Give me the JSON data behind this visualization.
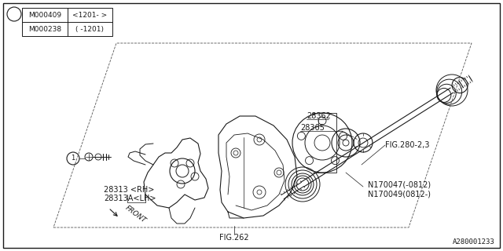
{
  "background_color": "#ffffff",
  "fig_width": 6.4,
  "fig_height": 3.2,
  "dpi": 100,
  "watermark": "A280001233",
  "line_color": "#1a1a1a",
  "line_width": 0.7,
  "table_row1_part": "M000238",
  "table_row1_range": "( -1201)",
  "table_row2_part": "M000409",
  "table_row2_range": "<1201- >",
  "label_fig280": "FIG.280-2,3",
  "label_28362": "28362",
  "label_28365": "28365",
  "label_28313rh": "28313 <RH>",
  "label_28313lh": "28313A<LH>",
  "label_n170047": "N170047(-0812)",
  "label_n170049": "N170049(0812-)",
  "label_fig262": "FIG.262",
  "label_front": "FRONT"
}
